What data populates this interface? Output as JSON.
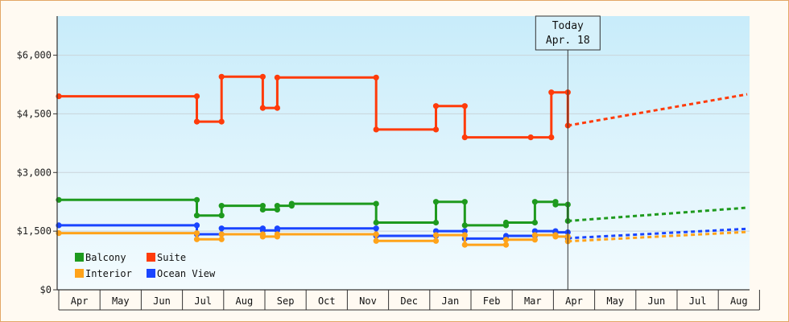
{
  "today_label": {
    "line1": "Today",
    "line2": "Apr. 18"
  },
  "colors": {
    "balcony": "#1e9a1e",
    "suite": "#ff3b0a",
    "interior": "#ffa31a",
    "ocean_view": "#1a45ff",
    "bg_top": "#c8ecfa",
    "bg_bottom": "#f3fbfe",
    "border": "#e3a766"
  },
  "chart_data": {
    "type": "line",
    "title": "",
    "xlabel": "",
    "ylabel": "",
    "ylim": [
      0,
      7000
    ],
    "y_ticks": [
      0,
      1500,
      3000,
      4500,
      6000
    ],
    "y_tick_labels": [
      "$0",
      "$1,500",
      "$3,000",
      "$4,500",
      "$6,000"
    ],
    "month_labels": [
      "Apr",
      "May",
      "Jun",
      "Jul",
      "Aug",
      "Sep",
      "Oct",
      "Nov",
      "Dec",
      "Jan",
      "Feb",
      "Mar",
      "Apr",
      "May",
      "Jun",
      "Jul",
      "Aug"
    ],
    "x_range": [
      "2023-04",
      "2024-08"
    ],
    "today": "Apr. 18",
    "step_lines": true,
    "legend": {
      "placement": "bottom-left",
      "entries": [
        "Balcony",
        "Suite",
        "Interior",
        "Ocean View"
      ]
    },
    "series": [
      {
        "name": "Suite",
        "color": "#ff3b0a",
        "points": [
          [
            0.0,
            4950
          ],
          [
            3.35,
            4950
          ],
          [
            3.35,
            4300
          ],
          [
            3.95,
            4300
          ],
          [
            3.95,
            5450
          ],
          [
            4.95,
            5450
          ],
          [
            4.95,
            4650
          ],
          [
            5.3,
            4650
          ],
          [
            5.3,
            5430
          ],
          [
            7.7,
            5430
          ],
          [
            7.7,
            4100
          ],
          [
            9.15,
            4100
          ],
          [
            9.15,
            4700
          ],
          [
            9.85,
            4700
          ],
          [
            9.85,
            3900
          ],
          [
            11.45,
            3900
          ],
          [
            11.95,
            3900
          ],
          [
            11.95,
            5050
          ],
          [
            12.35,
            5050
          ],
          [
            12.35,
            4200
          ]
        ],
        "forecast": [
          [
            12.35,
            4200
          ],
          [
            16.7,
            5000
          ]
        ]
      },
      {
        "name": "Balcony",
        "color": "#1e9a1e",
        "points": [
          [
            0.0,
            2300
          ],
          [
            3.35,
            2300
          ],
          [
            3.35,
            1900
          ],
          [
            3.95,
            1900
          ],
          [
            3.95,
            2150
          ],
          [
            4.95,
            2150
          ],
          [
            4.95,
            2050
          ],
          [
            5.3,
            2050
          ],
          [
            5.3,
            2150
          ],
          [
            5.65,
            2150
          ],
          [
            5.65,
            2200
          ],
          [
            7.7,
            2200
          ],
          [
            7.7,
            1720
          ],
          [
            9.15,
            1720
          ],
          [
            9.15,
            2250
          ],
          [
            9.85,
            2250
          ],
          [
            9.85,
            1650
          ],
          [
            10.85,
            1650
          ],
          [
            10.85,
            1720
          ],
          [
            11.55,
            1720
          ],
          [
            11.55,
            2250
          ],
          [
            12.05,
            2250
          ],
          [
            12.05,
            2180
          ],
          [
            12.35,
            2180
          ],
          [
            12.35,
            1760
          ]
        ],
        "forecast": [
          [
            12.35,
            1760
          ],
          [
            16.7,
            2100
          ]
        ]
      },
      {
        "name": "Ocean View",
        "color": "#1a45ff",
        "points": [
          [
            0.0,
            1650
          ],
          [
            3.35,
            1650
          ],
          [
            3.35,
            1420
          ],
          [
            3.95,
            1420
          ],
          [
            3.95,
            1570
          ],
          [
            4.95,
            1570
          ],
          [
            4.95,
            1520
          ],
          [
            5.3,
            1520
          ],
          [
            5.3,
            1570
          ],
          [
            7.7,
            1570
          ],
          [
            7.7,
            1380
          ],
          [
            9.15,
            1380
          ],
          [
            9.15,
            1500
          ],
          [
            9.85,
            1500
          ],
          [
            9.85,
            1310
          ],
          [
            10.85,
            1310
          ],
          [
            10.85,
            1380
          ],
          [
            11.55,
            1380
          ],
          [
            11.55,
            1500
          ],
          [
            12.05,
            1500
          ],
          [
            12.05,
            1470
          ],
          [
            12.35,
            1470
          ],
          [
            12.35,
            1320
          ]
        ],
        "forecast": [
          [
            12.35,
            1320
          ],
          [
            16.7,
            1560
          ]
        ]
      },
      {
        "name": "Interior",
        "color": "#ffa31a",
        "points": [
          [
            0.0,
            1450
          ],
          [
            3.35,
            1450
          ],
          [
            3.35,
            1290
          ],
          [
            3.95,
            1290
          ],
          [
            3.95,
            1420
          ],
          [
            4.95,
            1420
          ],
          [
            4.95,
            1360
          ],
          [
            5.3,
            1360
          ],
          [
            5.3,
            1420
          ],
          [
            7.7,
            1420
          ],
          [
            7.7,
            1250
          ],
          [
            9.15,
            1250
          ],
          [
            9.15,
            1400
          ],
          [
            9.85,
            1400
          ],
          [
            9.85,
            1150
          ],
          [
            10.85,
            1150
          ],
          [
            10.85,
            1280
          ],
          [
            11.55,
            1280
          ],
          [
            11.55,
            1400
          ],
          [
            12.05,
            1400
          ],
          [
            12.05,
            1360
          ],
          [
            12.35,
            1360
          ],
          [
            12.35,
            1240
          ]
        ],
        "forecast": [
          [
            12.35,
            1240
          ],
          [
            16.7,
            1480
          ]
        ]
      }
    ]
  }
}
